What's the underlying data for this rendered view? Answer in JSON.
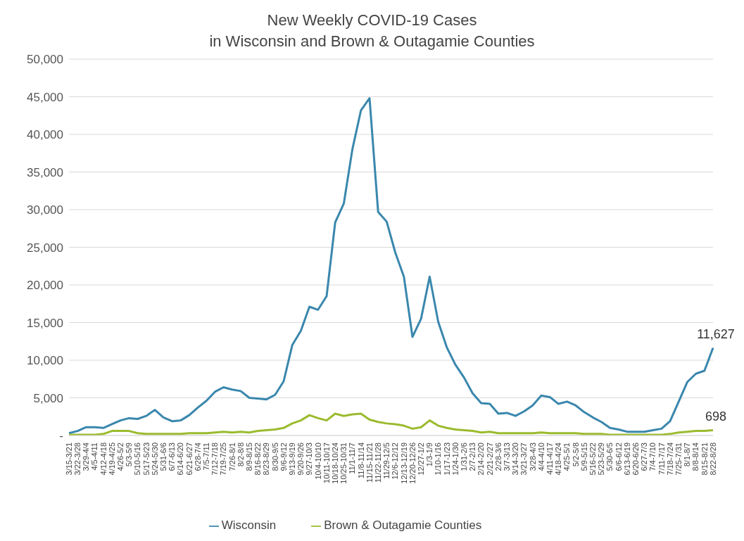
{
  "chart_data": {
    "type": "line",
    "title": "New Weekly COVID-19 Cases\nin Wisconsin and Brown & Outagamie Counties",
    "categories": [
      "3/15-3/21",
      "3/22-3/28",
      "3/29-4/4",
      "4/5-4/11",
      "4/12-4/18",
      "4/19-4/25",
      "4/26-5/2",
      "5/3-5/9",
      "5/10-5/16",
      "5/17-5/23",
      "5/24-5/30",
      "5/31-6/6",
      "6/7-6/13",
      "6/14-6/20",
      "6/21-6/27",
      "6/28-7/4",
      "7/5-7/11",
      "7/12-7/18",
      "7/19-7/25",
      "7/26-8/1",
      "8/2-8/8",
      "8/9-8/15",
      "8/16-8/22",
      "8/23-8/29",
      "8/30-9/5",
      "9/6-9/12",
      "9/13-9/19",
      "9/20-9/26",
      "9/27-10/3",
      "10/4-10/10",
      "10/11-10/17",
      "10/18-10/24",
      "10/25-10/31",
      "11/1-11/7",
      "11/8-11/14",
      "11/15-11/21",
      "11/22-11/28",
      "11/29-12/5",
      "12/6-12/12",
      "12/13-12/19",
      "12/20-12/26",
      "12/27-1/2",
      "1/3-1/9",
      "1/10-1/16",
      "1/17-1/23",
      "1/24-1/30",
      "1/31-2/6",
      "2/7-2/13",
      "2/14-2/20",
      "2/21-2/27",
      "2/28-3/6",
      "3/7-3/13",
      "3/14-3/20",
      "3/21-3/27",
      "3/28-4/3",
      "4/4-4/10",
      "4/11-4/17",
      "4/18-4/24",
      "4/25-5/1",
      "5/2-5/8",
      "5/9-5/15",
      "5/16-5/22",
      "5/23-5/29",
      "5/30-6/5",
      "6/6-6/12",
      "6/13-6/19",
      "6/20-6/26",
      "6/27-7/3",
      "7/4-7/10",
      "7/11-7/17",
      "7/18-7/24",
      "7/25-7/31",
      "8/1-8/7",
      "8/8-8/14",
      "8/15-8/21",
      "8/22-8/28"
    ],
    "series": [
      {
        "name": "Wisconsin",
        "color": "#3a87ad",
        "values": [
          300,
          600,
          1100,
          1100,
          1000,
          1500,
          2000,
          2300,
          2200,
          2600,
          3400,
          2400,
          1900,
          2000,
          2700,
          3700,
          4600,
          5800,
          6400,
          6100,
          5900,
          5000,
          4900,
          4800,
          5400,
          7200,
          12000,
          13900,
          17100,
          16700,
          18500,
          28300,
          30800,
          38000,
          43200,
          44800,
          29700,
          28400,
          24300,
          21100,
          13100,
          15500,
          21100,
          15100,
          11700,
          9400,
          7700,
          5600,
          4300,
          4200,
          2900,
          3000,
          2600,
          3200,
          4000,
          5300,
          5100,
          4200,
          4500,
          4000,
          3100,
          2400,
          1800,
          1000,
          800,
          500,
          500,
          500,
          700,
          900,
          1900,
          4500,
          7100,
          8200,
          8600,
          11627
        ],
        "value_labels": [
          null,
          null,
          null,
          null,
          null,
          null,
          null,
          null,
          null,
          null,
          null,
          null,
          null,
          null,
          null,
          null,
          null,
          null,
          null,
          null,
          null,
          null,
          null,
          null,
          null,
          null,
          null,
          null,
          null,
          null,
          null,
          null,
          null,
          null,
          null,
          null,
          null,
          null,
          null,
          null,
          null,
          null,
          null,
          null,
          null,
          null,
          null,
          null,
          null,
          null,
          null,
          null,
          null,
          null,
          null,
          null,
          null,
          null,
          null,
          null,
          null,
          null,
          null,
          null,
          null,
          null,
          null,
          null,
          null,
          null,
          null,
          null,
          null,
          null,
          null,
          "11,627"
        ]
      },
      {
        "name": "Brown & Outagamie Counties",
        "color": "#9bbb2e",
        "values": [
          100,
          100,
          100,
          100,
          200,
          600,
          600,
          600,
          300,
          200,
          200,
          200,
          200,
          200,
          300,
          300,
          300,
          400,
          500,
          400,
          500,
          400,
          600,
          700,
          800,
          1000,
          1600,
          2000,
          2700,
          2300,
          2000,
          2900,
          2600,
          2800,
          2900,
          2100,
          1800,
          1600,
          1500,
          1300,
          900,
          1100,
          2000,
          1300,
          1000,
          800,
          700,
          600,
          400,
          500,
          300,
          300,
          300,
          300,
          300,
          400,
          300,
          300,
          300,
          300,
          200,
          200,
          200,
          100,
          100,
          100,
          100,
          100,
          100,
          100,
          200,
          400,
          500,
          600,
          600,
          698
        ],
        "value_labels": [
          null,
          null,
          null,
          null,
          null,
          null,
          null,
          null,
          null,
          null,
          null,
          null,
          null,
          null,
          null,
          null,
          null,
          null,
          null,
          null,
          null,
          null,
          null,
          null,
          null,
          null,
          null,
          null,
          null,
          null,
          null,
          null,
          null,
          null,
          null,
          null,
          null,
          null,
          null,
          null,
          null,
          null,
          null,
          null,
          null,
          null,
          null,
          null,
          null,
          null,
          null,
          null,
          null,
          null,
          null,
          null,
          null,
          null,
          null,
          null,
          null,
          null,
          null,
          null,
          null,
          null,
          null,
          null,
          null,
          null,
          null,
          null,
          null,
          null,
          null,
          "698"
        ]
      }
    ],
    "ylim": [
      0,
      50000
    ],
    "yticks": [
      {
        "value": 0,
        "label": "-"
      },
      {
        "value": 5000,
        "label": "5,000"
      },
      {
        "value": 10000,
        "label": "10,000"
      },
      {
        "value": 15000,
        "label": "15,000"
      },
      {
        "value": 20000,
        "label": "20,000"
      },
      {
        "value": 25000,
        "label": "25,000"
      },
      {
        "value": 30000,
        "label": "30,000"
      },
      {
        "value": 35000,
        "label": "35,000"
      },
      {
        "value": 40000,
        "label": "40,000"
      },
      {
        "value": 45000,
        "label": "45,000"
      },
      {
        "value": 50000,
        "label": "50,000"
      }
    ],
    "grid": "y",
    "legend": "bottom",
    "marker": "none",
    "line_style": "solid"
  }
}
